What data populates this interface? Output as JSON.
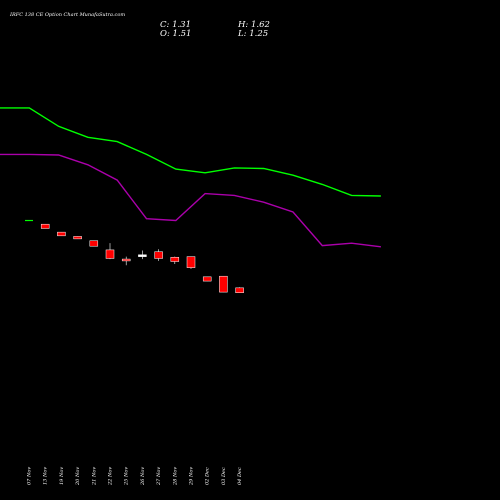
{
  "chart_data": {
    "type": "candlestick",
    "title": "IRFC 138 CE Option Chart MunafaSutra.com",
    "ohlc_readout": {
      "close_label": "C: 1.31",
      "high_label": "H: 1.62",
      "open_label": "O: 1.51",
      "low_label": "L: 1.25"
    },
    "dates": [
      "07 Nov",
      "13 Nov",
      "19 Nov",
      "20 Nov",
      "21 Nov",
      "22 Nov",
      "25 Nov",
      "26 Nov",
      "27 Nov",
      "28 Nov",
      "29 Nov",
      "02 Dec",
      "03 Dec",
      "04 Dec"
    ],
    "candles": [
      {
        "open": 7.6,
        "high": 7.6,
        "low": 7.6,
        "close": 7.6
      },
      {
        "open": 6.9,
        "high": 6.9,
        "low": 6.2,
        "close": 6.2
      },
      {
        "open": 5.6,
        "high": 5.6,
        "low": 5.0,
        "close": 5.0
      },
      {
        "open": 4.9,
        "high": 4.9,
        "low": 4.5,
        "close": 4.5
      },
      {
        "open": 4.2,
        "high": 4.2,
        "low": 3.3,
        "close": 3.3
      },
      {
        "open": 2.7,
        "high": 3.8,
        "low": 1.2,
        "close": 1.3
      },
      {
        "open": 1.2,
        "high": 1.6,
        "low": 0.2,
        "close": 0.9
      },
      {
        "open": 1.6,
        "high": 2.6,
        "low": 1.2,
        "close": 1.9
      },
      {
        "open": 2.4,
        "high": 2.8,
        "low": 0.9,
        "close": 1.3
      },
      {
        "open": 1.5,
        "high": 1.6,
        "low": 0.4,
        "close": 0.8
      },
      {
        "open": 1.6,
        "high": 1.6,
        "low": -0.4,
        "close": -0.2
      },
      {
        "open": -1.7,
        "high": -1.7,
        "low": -2.4,
        "close": -2.4
      },
      {
        "open": -1.6,
        "high": -1.6,
        "low": -4.2,
        "close": -4.2
      },
      {
        "open": -3.5,
        "high": -3.4,
        "low": -4.3,
        "close": -4.3
      }
    ],
    "series": [
      {
        "values": [
          25.9,
          25.9,
          22.9,
          21.1,
          20.4,
          18.3,
          15.9,
          15.3,
          16.1,
          16.0,
          14.9,
          13.4,
          11.6,
          11.5
        ],
        "color": "#00ff00"
      },
      {
        "values": [
          18.3,
          18.3,
          18.2,
          16.6,
          14.1,
          7.8,
          7.5,
          11.9,
          11.6,
          10.5,
          8.9,
          3.4,
          3.8,
          3.2
        ],
        "color": "#aa00aa"
      }
    ],
    "ylim": [
      -30,
      37
    ],
    "colors": {
      "background": "#000000",
      "up": "#ffffff",
      "down": "#ff0000",
      "text": "#ffffff"
    },
    "grid": false
  }
}
